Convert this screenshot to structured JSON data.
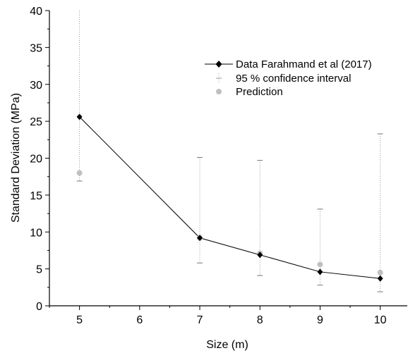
{
  "chart_data": {
    "type": "line",
    "xlabel": "Size (m)",
    "ylabel": "Standard Deviation (MPa)",
    "xlim": [
      4.5,
      10.45
    ],
    "ylim": [
      0,
      40
    ],
    "x_ticks": [
      5,
      6,
      7,
      8,
      9,
      10
    ],
    "y_ticks": [
      0,
      5,
      10,
      15,
      20,
      25,
      30,
      35,
      40
    ],
    "x_tick_labels": [
      "5",
      "6",
      "7",
      "8",
      "9",
      "10"
    ],
    "y_tick_labels": [
      "0",
      "5",
      "10",
      "15",
      "20",
      "25",
      "30",
      "35",
      "40"
    ],
    "grid": false,
    "legend_position": "top-right",
    "series": [
      {
        "name": "Data Farahmand et al (2017)",
        "kind": "line-markers",
        "color": "#000000",
        "marker": "diamond",
        "x": [
          5,
          7,
          8,
          9,
          10
        ],
        "y": [
          25.6,
          9.2,
          6.9,
          4.6,
          3.7
        ]
      },
      {
        "name": "95 % confidence interval",
        "kind": "error-bars",
        "color": "#808080",
        "x": [
          5,
          7,
          8,
          9,
          10
        ],
        "lower": [
          16.9,
          5.8,
          4.1,
          2.8,
          1.9
        ],
        "upper": [
          40,
          20.1,
          19.7,
          13.1,
          23.3
        ]
      },
      {
        "name": "Prediction",
        "kind": "scatter",
        "color": "#c0c0c0",
        "marker": "circle",
        "x": [
          5,
          7,
          8,
          9,
          10
        ],
        "y": [
          18.0,
          9.2,
          7.1,
          5.6,
          4.5
        ]
      }
    ]
  }
}
